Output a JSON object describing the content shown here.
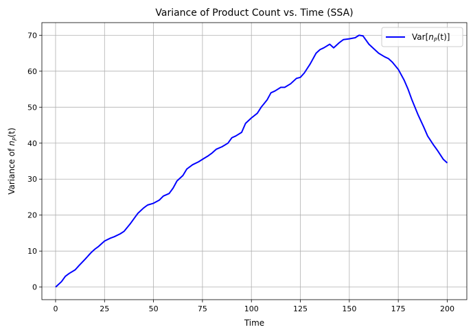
{
  "chart_data": {
    "type": "line",
    "title": "Variance of Product Count vs. Time (SSA)",
    "xlabel": "Time",
    "ylabel_prefix": "Variance of ",
    "ylabel_var": "n",
    "ylabel_sub": "P",
    "ylabel_suffix": "(t)",
    "xlim": [
      -7,
      210
    ],
    "ylim": [
      -3.5,
      73.5
    ],
    "xticks": [
      0,
      25,
      50,
      75,
      100,
      125,
      150,
      175,
      200
    ],
    "yticks": [
      0,
      10,
      20,
      30,
      40,
      50,
      60,
      70
    ],
    "grid": true,
    "legend_position": "top-right",
    "series": [
      {
        "legend_prefix": "Var[",
        "legend_var": "n",
        "legend_sub": "P",
        "legend_suffix": "(t)]",
        "color": "#0000ff",
        "x": [
          0,
          3,
          5,
          7,
          10,
          12,
          15,
          18,
          20,
          22,
          25,
          28,
          30,
          33,
          35,
          38,
          40,
          42,
          45,
          47,
          50,
          53,
          55,
          58,
          60,
          62,
          65,
          67,
          70,
          73,
          75,
          78,
          80,
          82,
          85,
          88,
          90,
          92,
          95,
          97,
          100,
          103,
          105,
          108,
          110,
          112,
          115,
          117,
          120,
          123,
          125,
          127,
          130,
          133,
          135,
          137,
          140,
          142,
          145,
          147,
          150,
          153,
          155,
          157,
          160,
          163,
          165,
          168,
          170,
          172,
          175,
          178,
          180,
          182,
          185,
          188,
          190,
          193,
          195,
          198,
          200
        ],
        "y": [
          0,
          1.5,
          3.0,
          3.8,
          4.8,
          6.0,
          7.7,
          9.5,
          10.5,
          11.3,
          12.8,
          13.6,
          14.0,
          14.8,
          15.5,
          17.5,
          19.0,
          20.5,
          22.0,
          22.8,
          23.3,
          24.2,
          25.3,
          26.0,
          27.5,
          29.5,
          31.0,
          32.8,
          34.0,
          34.8,
          35.5,
          36.5,
          37.3,
          38.3,
          39.0,
          40.0,
          41.5,
          42.0,
          43.0,
          45.5,
          47.0,
          48.3,
          50.0,
          52.0,
          54.0,
          54.5,
          55.5,
          55.5,
          56.5,
          58.0,
          58.3,
          59.5,
          62.0,
          65.0,
          66.0,
          66.5,
          67.5,
          66.5,
          68.0,
          68.8,
          69.0,
          69.3,
          70.0,
          69.8,
          67.5,
          66.0,
          65.0,
          64.0,
          63.5,
          62.5,
          60.5,
          57.5,
          55.0,
          52.0,
          48.0,
          44.5,
          42.0,
          39.5,
          38.0,
          35.5,
          34.5
        ]
      }
    ]
  }
}
